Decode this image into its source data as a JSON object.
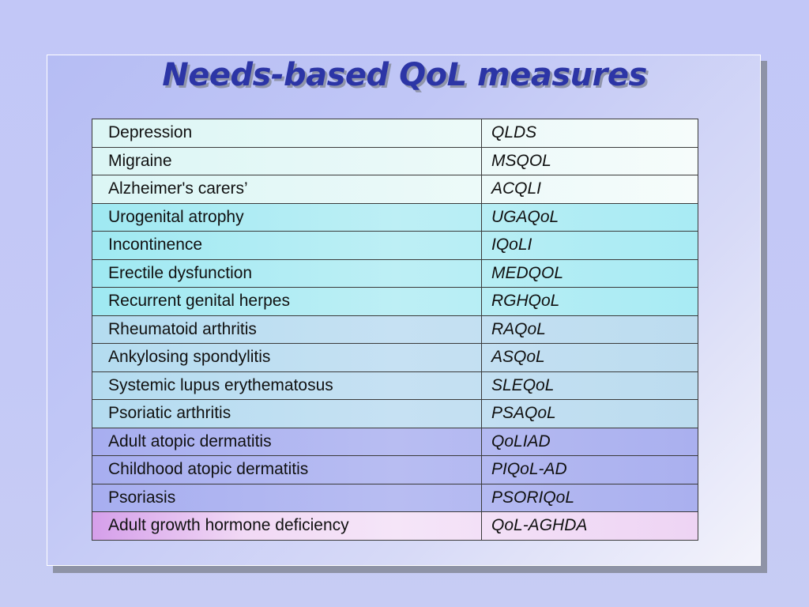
{
  "slide": {
    "title": "Needs-based QoL measures"
  },
  "table": {
    "rows": [
      {
        "condition": "Depression",
        "measure": "QLDS"
      },
      {
        "condition": "Migraine",
        "measure": "MSQOL"
      },
      {
        "condition": "Alzheimer's carers’",
        "measure": "ACQLI"
      },
      {
        "condition": "Urogenital atrophy",
        "measure": "UGAQoL"
      },
      {
        "condition": "Incontinence",
        "measure": "IQoLI"
      },
      {
        "condition": "Erectile dysfunction",
        "measure": "MEDQOL"
      },
      {
        "condition": "Recurrent genital herpes",
        "measure": "RGHQoL"
      },
      {
        "condition": "Rheumatoid arthritis",
        "measure": "RAQoL"
      },
      {
        "condition": "Ankylosing spondylitis",
        "measure": "ASQoL"
      },
      {
        "condition": "Systemic lupus erythematosus",
        "measure": "SLEQoL"
      },
      {
        "condition": "Psoriatic arthritis",
        "measure": "PSAQoL"
      },
      {
        "condition": "Adult atopic dermatitis",
        "measure": "QoLIAD"
      },
      {
        "condition": "Childhood atopic dermatitis",
        "measure": "PIQoL-AD"
      },
      {
        "condition": "Psoriasis",
        "measure": "PSORIQoL"
      },
      {
        "condition": "Adult growth hormone deficiency",
        "measure": "QoL-AGHDA"
      }
    ]
  },
  "colors": {
    "title": "#2c35a6",
    "background": "#c2c7f7",
    "table_border": "#3a3a3a"
  }
}
